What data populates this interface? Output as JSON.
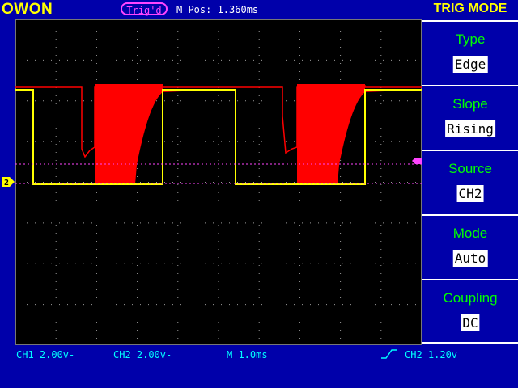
{
  "header": {
    "brand": "OWON",
    "trigger_status": "Trig'd",
    "m_pos": "M Pos: 1.360ms",
    "menu_title": "TRIG MODE"
  },
  "menu": [
    {
      "label": "Type",
      "value": "Edge"
    },
    {
      "label": "Slope",
      "value": "Rising"
    },
    {
      "label": "Source",
      "value": "CH2"
    },
    {
      "label": "Mode",
      "value": "Auto"
    },
    {
      "label": "Coupling",
      "value": "DC"
    }
  ],
  "status_bar": {
    "ch1": "CH1 2.00v-",
    "ch2": "CH2 2.00v-",
    "timebase": "M 1.0ms",
    "trigger": "CH2 1.20v"
  },
  "markers": {
    "trigger_position": "T",
    "ch2_ground": "2"
  },
  "colors": {
    "background": "#0000aa",
    "ch1": "#ff0000",
    "ch2": "#ffff00",
    "trigger": "#ff44ff",
    "menu_label": "#00ff00",
    "status_text": "#00ffff"
  }
}
